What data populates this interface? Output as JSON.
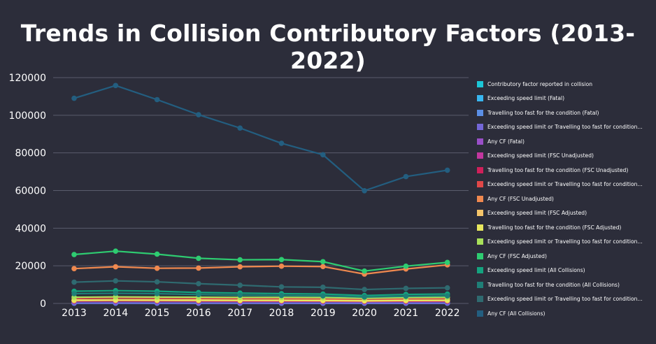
{
  "chart_data": {
    "type": "line",
    "title": "Trends in Collision Contributory Factors (2013-2022)",
    "xlabel": "",
    "ylabel": "",
    "categories": [
      "2013",
      "2014",
      "2015",
      "2016",
      "2017",
      "2018",
      "2019",
      "2020",
      "2021",
      "2022"
    ],
    "ylim": [
      0,
      120000
    ],
    "yticks": [
      0,
      20000,
      40000,
      60000,
      80000,
      100000,
      120000
    ],
    "ytick_labels": [
      "0",
      "20000",
      "40000",
      "60000",
      "80000",
      "100000",
      "120000"
    ],
    "grid": true,
    "legend_position": "right",
    "series": [
      {
        "name": "Contributory factor reported in collision",
        "color": "#1cc6d6",
        "values": [
          null,
          null,
          null,
          null,
          null,
          null,
          null,
          null,
          null,
          null
        ]
      },
      {
        "name": "Exceeding speed limit (Fatal)",
        "color": "#38b6f0",
        "values": [
          150,
          160,
          150,
          140,
          140,
          130,
          130,
          120,
          130,
          140
        ]
      },
      {
        "name": "Travelling too fast for the condition (Fatal)",
        "color": "#5b8fe6",
        "values": [
          120,
          120,
          110,
          110,
          110,
          100,
          100,
          100,
          100,
          110
        ]
      },
      {
        "name": "Exceeding speed limit or Travelling too fast for condition...",
        "color": "#7467d8",
        "values": [
          260,
          270,
          250,
          240,
          240,
          220,
          220,
          210,
          220,
          240
        ]
      },
      {
        "name": "Any CF (Fatal)",
        "color": "#9a4fc8",
        "values": [
          1200,
          1300,
          1250,
          1200,
          1200,
          1150,
          1150,
          1000,
          1100,
          1150
        ]
      },
      {
        "name": "Exceeding speed limit (FSC Unadjusted)",
        "color": "#c2379f",
        "values": [
          1500,
          1600,
          1550,
          1500,
          1450,
          1450,
          1400,
          1300,
          1400,
          1450
        ]
      },
      {
        "name": "Travelling too fast for the condition (FSC Unadjusted)",
        "color": "#d0205a",
        "values": [
          1300,
          1400,
          1350,
          1300,
          1250,
          1250,
          1200,
          1100,
          1200,
          1250
        ]
      },
      {
        "name": "Exceeding speed limit or Travelling too fast for condition...",
        "color": "#e04848",
        "values": [
          2700,
          2900,
          2800,
          2700,
          2600,
          2600,
          2500,
          2300,
          2500,
          2600
        ]
      },
      {
        "name": "Any CF (FSC Unadjusted)",
        "color": "#f0894f",
        "values": [
          18500,
          19500,
          18700,
          18800,
          19500,
          19800,
          19600,
          15600,
          18300,
          20500
        ]
      },
      {
        "name": "Exceeding speed limit (FSC Adjusted)",
        "color": "#f5c56a",
        "values": [
          1800,
          1900,
          1850,
          1800,
          1750,
          1750,
          1700,
          1500,
          1700,
          1750
        ]
      },
      {
        "name": "Travelling too fast for the condition (FSC Adjusted)",
        "color": "#e8e85e",
        "values": [
          1600,
          1700,
          1650,
          1600,
          1550,
          1550,
          1500,
          1350,
          1500,
          1550
        ]
      },
      {
        "name": "Exceeding speed limit or Travelling too fast for condition...",
        "color": "#a8e05a",
        "values": [
          3300,
          3500,
          3400,
          3300,
          3200,
          3200,
          3100,
          2800,
          3100,
          3200
        ]
      },
      {
        "name": "Any CF (FSC Adjusted)",
        "color": "#2ecc71",
        "values": [
          26000,
          27800,
          26200,
          24000,
          23200,
          23300,
          22200,
          17200,
          19800,
          21800
        ]
      },
      {
        "name": "Exceeding speed limit (All Collisions)",
        "color": "#14a37f",
        "values": [
          6500,
          6800,
          6500,
          5800,
          5500,
          5200,
          5000,
          4200,
          4800,
          5000
        ]
      },
      {
        "name": "Travelling too fast for the condition (All Collisions)",
        "color": "#1f7f77",
        "values": [
          5200,
          5400,
          5200,
          4700,
          4400,
          4200,
          4000,
          3400,
          3800,
          4000
        ]
      },
      {
        "name": "Exceeding speed limit or Travelling too fast for condition...",
        "color": "#2f6a70",
        "values": [
          11300,
          12000,
          11500,
          10500,
          9700,
          8800,
          8600,
          7400,
          8000,
          8300
        ]
      },
      {
        "name": "Any CF (All Collisions)",
        "color": "#235e80",
        "values": [
          109000,
          115800,
          108300,
          100300,
          93200,
          85100,
          79000,
          59900,
          67400,
          70800
        ]
      }
    ]
  }
}
